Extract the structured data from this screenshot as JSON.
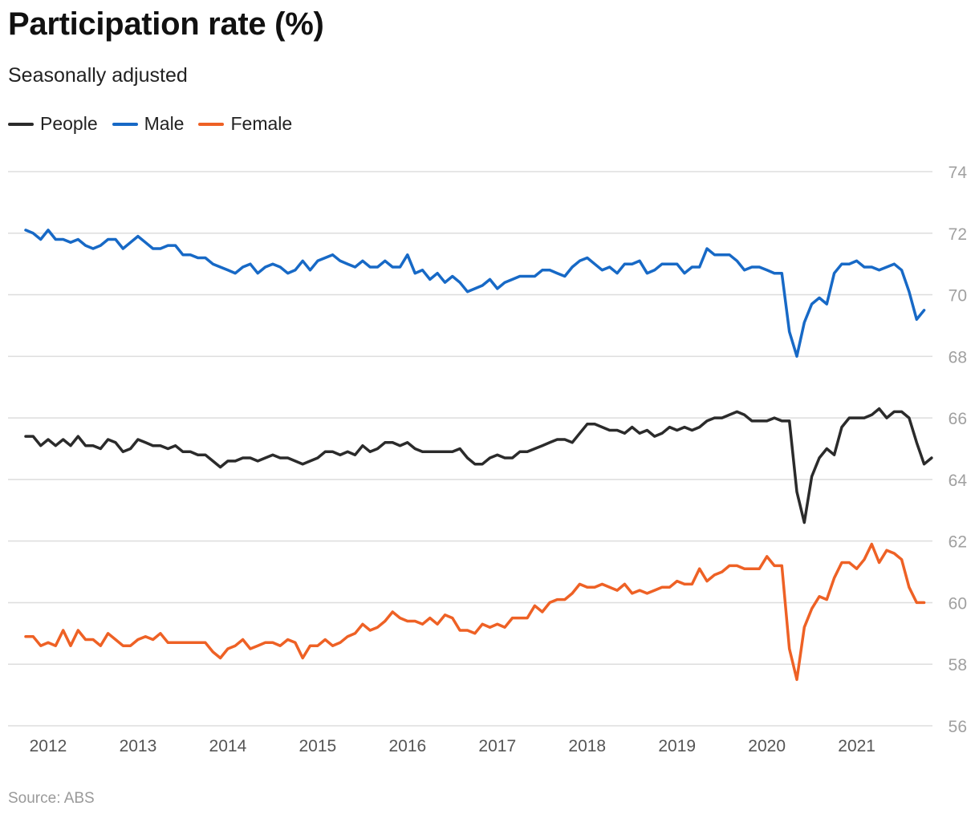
{
  "title": "Participation rate (%)",
  "subtitle": "Seasonally adjusted",
  "source": "Source: ABS",
  "chart_data": {
    "type": "line",
    "title": "Participation rate (%)",
    "subtitle": "Seasonally adjusted",
    "xlabel": "",
    "ylabel": "",
    "ylim": [
      56,
      74
    ],
    "yticks": [
      56,
      58,
      60,
      62,
      64,
      66,
      68,
      70,
      72,
      74
    ],
    "xticks": [
      "2012",
      "2013",
      "2014",
      "2015",
      "2016",
      "2017",
      "2018",
      "2019",
      "2020",
      "2021"
    ],
    "x_start": "2011-10",
    "x_frequency": "monthly",
    "legend_position": "top-left",
    "grid": true,
    "series": [
      {
        "name": "People",
        "color": "#2b2b2b",
        "values": [
          65.4,
          65.4,
          65.1,
          65.3,
          65.1,
          65.3,
          65.1,
          65.4,
          65.1,
          65.1,
          65.0,
          65.3,
          65.2,
          64.9,
          65.0,
          65.3,
          65.2,
          65.1,
          65.1,
          65.0,
          65.1,
          64.9,
          64.9,
          64.8,
          64.8,
          64.6,
          64.4,
          64.6,
          64.6,
          64.7,
          64.7,
          64.6,
          64.7,
          64.8,
          64.7,
          64.7,
          64.6,
          64.5,
          64.6,
          64.7,
          64.9,
          64.9,
          64.8,
          64.9,
          64.8,
          65.1,
          64.9,
          65.0,
          65.2,
          65.2,
          65.1,
          65.2,
          65.0,
          64.9,
          64.9,
          64.9,
          64.9,
          64.9,
          65.0,
          64.7,
          64.5,
          64.5,
          64.7,
          64.8,
          64.7,
          64.7,
          64.9,
          64.9,
          65.0,
          65.1,
          65.2,
          65.3,
          65.3,
          65.2,
          65.5,
          65.8,
          65.8,
          65.7,
          65.6,
          65.6,
          65.5,
          65.7,
          65.5,
          65.6,
          65.4,
          65.5,
          65.7,
          65.6,
          65.7,
          65.6,
          65.7,
          65.9,
          66.0,
          66.0,
          66.1,
          66.2,
          66.1,
          65.9,
          65.9,
          65.9,
          66.0,
          65.9,
          65.9,
          63.6,
          62.6,
          64.1,
          64.7,
          65.0,
          64.8,
          65.7,
          66.0,
          66.0,
          66.0,
          66.1,
          66.3,
          66.0,
          66.2,
          66.2,
          66.0,
          65.2,
          64.5,
          64.7
        ]
      },
      {
        "name": "Male",
        "color": "#1769c6",
        "values": [
          72.1,
          72.0,
          71.8,
          72.1,
          71.8,
          71.8,
          71.7,
          71.8,
          71.6,
          71.5,
          71.6,
          71.8,
          71.8,
          71.5,
          71.7,
          71.9,
          71.7,
          71.5,
          71.5,
          71.6,
          71.6,
          71.3,
          71.3,
          71.2,
          71.2,
          71.0,
          70.9,
          70.8,
          70.7,
          70.9,
          71.0,
          70.7,
          70.9,
          71.0,
          70.9,
          70.7,
          70.8,
          71.1,
          70.8,
          71.1,
          71.2,
          71.3,
          71.1,
          71.0,
          70.9,
          71.1,
          70.9,
          70.9,
          71.1,
          70.9,
          70.9,
          71.3,
          70.7,
          70.8,
          70.5,
          70.7,
          70.4,
          70.6,
          70.4,
          70.1,
          70.2,
          70.3,
          70.5,
          70.2,
          70.4,
          70.5,
          70.6,
          70.6,
          70.6,
          70.8,
          70.8,
          70.7,
          70.6,
          70.9,
          71.1,
          71.2,
          71.0,
          70.8,
          70.9,
          70.7,
          71.0,
          71.0,
          71.1,
          70.7,
          70.8,
          71.0,
          71.0,
          71.0,
          70.7,
          70.9,
          70.9,
          71.5,
          71.3,
          71.3,
          71.3,
          71.1,
          70.8,
          70.9,
          70.9,
          70.8,
          70.7,
          70.7,
          68.8,
          68.0,
          69.1,
          69.7,
          69.9,
          69.7,
          70.7,
          71.0,
          71.0,
          71.1,
          70.9,
          70.9,
          70.8,
          70.9,
          71.0,
          70.8,
          70.1,
          69.2,
          69.5
        ]
      },
      {
        "name": "Female",
        "color": "#ee6125",
        "values": [
          58.9,
          58.9,
          58.6,
          58.7,
          58.6,
          59.1,
          58.6,
          59.1,
          58.8,
          58.8,
          58.6,
          59.0,
          58.8,
          58.6,
          58.6,
          58.8,
          58.9,
          58.8,
          59.0,
          58.7,
          58.7,
          58.7,
          58.7,
          58.7,
          58.7,
          58.4,
          58.2,
          58.5,
          58.6,
          58.8,
          58.5,
          58.6,
          58.7,
          58.7,
          58.6,
          58.8,
          58.7,
          58.2,
          58.6,
          58.6,
          58.8,
          58.6,
          58.7,
          58.9,
          59.0,
          59.3,
          59.1,
          59.2,
          59.4,
          59.7,
          59.5,
          59.4,
          59.4,
          59.3,
          59.5,
          59.3,
          59.6,
          59.5,
          59.1,
          59.1,
          59.0,
          59.3,
          59.2,
          59.3,
          59.2,
          59.5,
          59.5,
          59.5,
          59.9,
          59.7,
          60.0,
          60.1,
          60.1,
          60.3,
          60.6,
          60.5,
          60.5,
          60.6,
          60.5,
          60.4,
          60.6,
          60.3,
          60.4,
          60.3,
          60.4,
          60.5,
          60.5,
          60.7,
          60.6,
          60.6,
          61.1,
          60.7,
          60.9,
          61.0,
          61.2,
          61.2,
          61.1,
          61.1,
          61.1,
          61.5,
          61.2,
          61.2,
          58.5,
          57.5,
          59.2,
          59.8,
          60.2,
          60.1,
          60.8,
          61.3,
          61.3,
          61.1,
          61.4,
          61.9,
          61.3,
          61.7,
          61.6,
          61.4,
          60.5,
          60.0,
          60.0
        ]
      }
    ]
  }
}
